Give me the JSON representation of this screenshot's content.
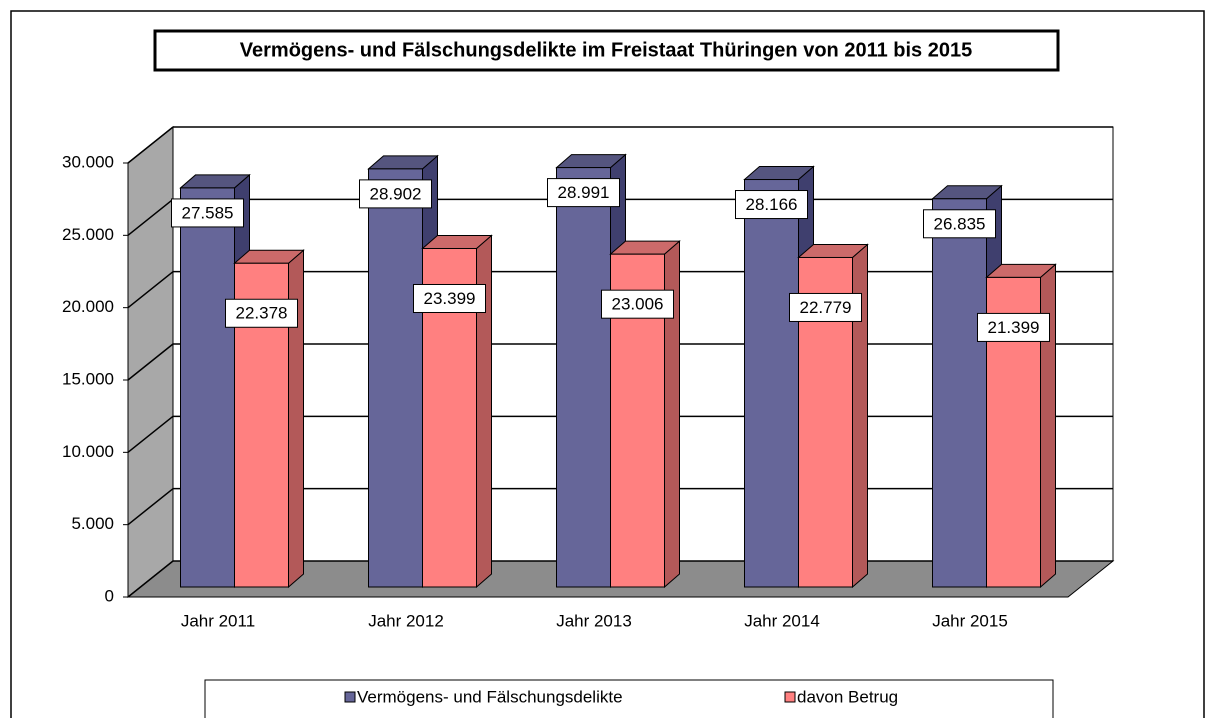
{
  "chart_data": {
    "type": "bar3d",
    "title": "Vermögens- und Fälschungsdelikte im Freistaat Thüringen von 2011 bis 2015",
    "categories": [
      "Jahr 2011",
      "Jahr 2012",
      "Jahr 2013",
      "Jahr 2014",
      "Jahr 2015"
    ],
    "series": [
      {
        "name": "Vermögens- und Fälschungsdelikte",
        "color": "#666699",
        "values": [
          27585,
          28902,
          28991,
          28166,
          26835
        ],
        "value_labels": [
          "27.585",
          "28.902",
          "28.991",
          "28.166",
          "26.835"
        ]
      },
      {
        "name": "davon Betrug",
        "color": "#ff8080",
        "values": [
          22378,
          23399,
          23006,
          22779,
          21399
        ],
        "value_labels": [
          "22.378",
          "23.399",
          "23.006",
          "22.779",
          "21.399"
        ]
      }
    ],
    "ylim": [
      0,
      30000
    ],
    "yticks": [
      0,
      {
        "value": 5000,
        "label": "5.000"
      },
      {
        "value": 10000,
        "label": "10.000"
      },
      {
        "value": 15000,
        "label": "15.000"
      },
      {
        "value": 20000,
        "label": "20.000"
      },
      {
        "value": 25000,
        "label": "25.000"
      },
      {
        "value": 30000,
        "label": "30.000"
      }
    ],
    "grid": true,
    "legend": "bottom"
  }
}
